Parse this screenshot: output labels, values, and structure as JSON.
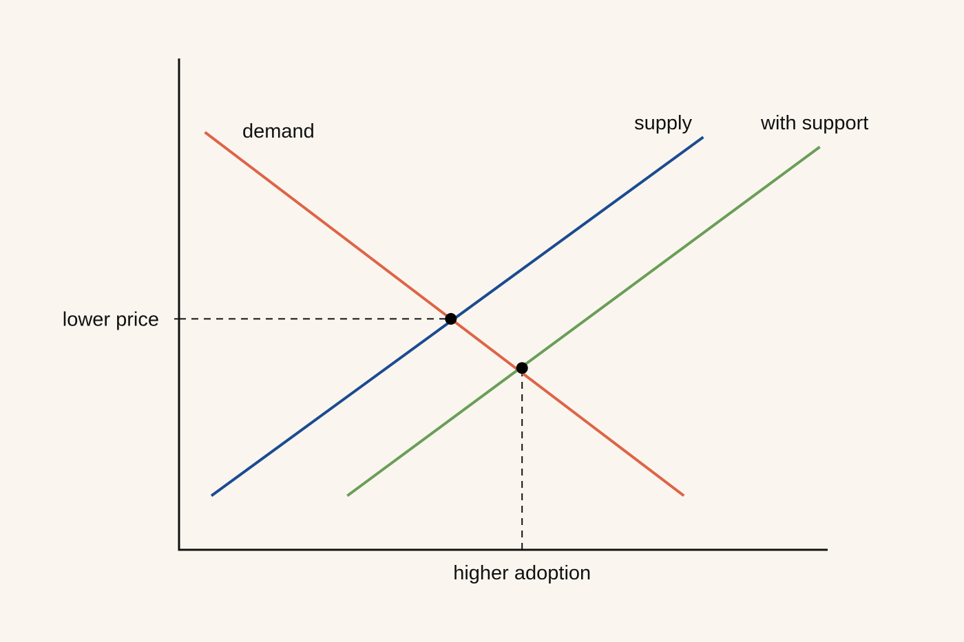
{
  "chart_data": {
    "type": "line",
    "title": "",
    "xlabel": "",
    "ylabel": "",
    "grid": false,
    "legend": "none",
    "xlim": [
      0,
      100
    ],
    "ylim": [
      0,
      100
    ],
    "series": [
      {
        "name": "demand",
        "color": "#df6447",
        "x": [
          4,
          78
        ],
        "y": [
          85,
          11
        ]
      },
      {
        "name": "supply",
        "color": "#1b4b91",
        "x": [
          5,
          81
        ],
        "y": [
          11,
          84
        ]
      },
      {
        "name": "with support",
        "color": "#6a9e58",
        "x": [
          26,
          99
        ],
        "y": [
          11,
          82
        ]
      }
    ],
    "equilibria": [
      {
        "x": 42,
        "y": 47
      },
      {
        "x": 53,
        "y": 37
      }
    ],
    "reference_lines": [
      {
        "axis": "y",
        "value": 47,
        "to_x": 42,
        "label": "lower price"
      },
      {
        "axis": "x",
        "value": 53,
        "to_y": 37,
        "label": "higher adoption"
      }
    ],
    "point_color": "#000000"
  }
}
